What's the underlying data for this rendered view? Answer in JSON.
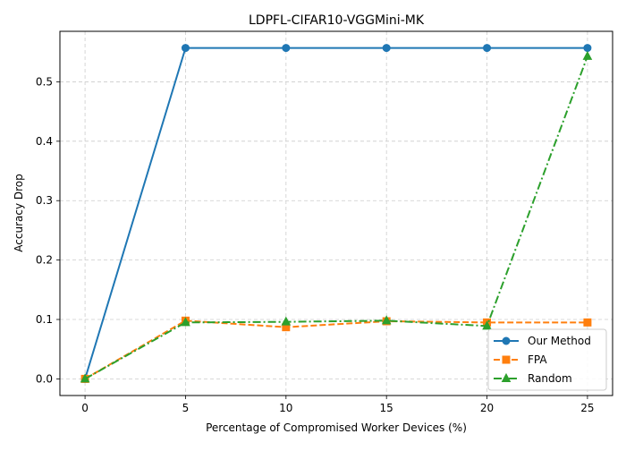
{
  "chart_data": {
    "type": "line",
    "title": "LDPFL-CIFAR10-VGGMini-MK",
    "xlabel": "Percentage of Compromised Worker Devices (%)",
    "ylabel": "Accuracy Drop",
    "x": [
      0,
      5,
      10,
      15,
      20,
      25
    ],
    "xlim": [
      -1.25,
      26.25
    ],
    "ylim": [
      -0.028,
      0.585
    ],
    "xticks": [
      0,
      5,
      10,
      15,
      20,
      25
    ],
    "yticks": [
      0.0,
      0.1,
      0.2,
      0.3,
      0.4,
      0.5
    ],
    "grid": true,
    "legend_position": "bottom-right",
    "series": [
      {
        "name": "Our Method",
        "values": [
          0.0,
          0.557,
          0.557,
          0.557,
          0.557,
          0.557
        ],
        "color": "#1f77b4",
        "linestyle": "solid",
        "marker": "circle"
      },
      {
        "name": "FPA",
        "values": [
          0.0,
          0.098,
          0.087,
          0.097,
          0.095,
          0.095
        ],
        "color": "#ff7f0e",
        "linestyle": "dashed",
        "marker": "square"
      },
      {
        "name": "Random",
        "values": [
          0.0,
          0.095,
          0.096,
          0.098,
          0.089,
          0.543
        ],
        "color": "#2ca02c",
        "linestyle": "dashdot",
        "marker": "triangle"
      }
    ]
  }
}
